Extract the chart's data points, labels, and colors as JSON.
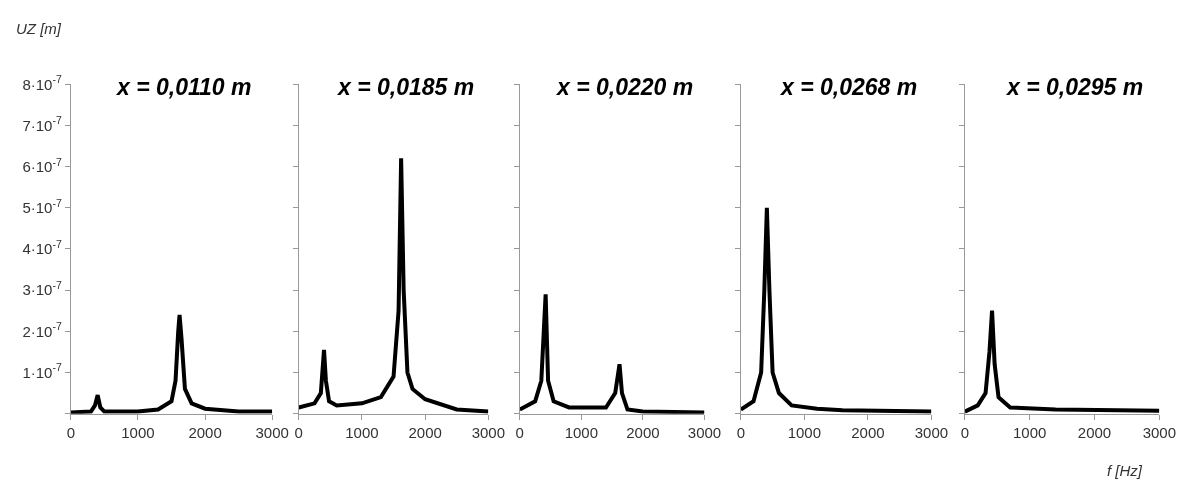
{
  "chart_data": [
    {
      "type": "line",
      "title": "x = 0,0110 m",
      "ylabel": "UZ [m]",
      "color": "#000000",
      "marker": "none",
      "line_style": "solid",
      "x": [
        0,
        300,
        360,
        400,
        440,
        500,
        1000,
        1300,
        1500,
        1560,
        1600,
        1620,
        1650,
        1700,
        1800,
        2000,
        2500,
        3000
      ],
      "values": [
        3e-09,
        5e-09,
        2e-08,
        4.5e-08,
        1.5e-08,
        5e-09,
        5e-09,
        1e-08,
        3e-08,
        8e-08,
        2e-07,
        2.4e-07,
        1.8e-07,
        6e-08,
        2.5e-08,
        1.2e-08,
        5e-09,
        5e-09
      ],
      "xlim": [
        0,
        3000
      ],
      "xticks": [
        0,
        1000,
        2000,
        3000
      ],
      "ylim": [
        0,
        8e-07
      ],
      "yticks": [
        {
          "value": 0,
          "label": null
        },
        {
          "value": 1e-07,
          "label": "1·10$^{-7}$"
        },
        {
          "value": 2e-07,
          "label": "2·10$^{-7}$"
        },
        {
          "value": 3e-07,
          "label": "3·10$^{-7}$"
        },
        {
          "value": 4e-07,
          "label": "4·10$^{-7}$"
        },
        {
          "value": 5e-07,
          "label": "5·10$^{-7}$"
        },
        {
          "value": 6e-07,
          "label": "6·10$^{-7}$"
        },
        {
          "value": 7e-07,
          "label": "7·10$^{-7}$"
        },
        {
          "value": 8e-07,
          "label": "8·10$^{-7}$"
        }
      ]
    },
    {
      "type": "line",
      "title": "x = 0,0185 m",
      "color": "#000000",
      "marker": "none",
      "line_style": "solid",
      "tick_labels": "x",
      "x": [
        0,
        250,
        350,
        400,
        430,
        480,
        600,
        1000,
        1300,
        1500,
        1580,
        1620,
        1660,
        1720,
        1800,
        2000,
        2500,
        3000
      ],
      "values": [
        1.5e-08,
        2.5e-08,
        5e-08,
        1.55e-07,
        8e-08,
        3e-08,
        2e-08,
        2.5e-08,
        4e-08,
        9e-08,
        2.5e-07,
        6.2e-07,
        3e-07,
        1e-07,
        6e-08,
        3.5e-08,
        1e-08,
        5e-09
      ],
      "xlim": [
        0,
        3000
      ],
      "xticks": [
        0,
        1000,
        2000,
        3000
      ],
      "ylim": [
        0,
        8e-07
      ],
      "yticks": [
        {
          "value": 0,
          "label": null
        },
        {
          "value": 1e-07,
          "label": null
        },
        {
          "value": 2e-07,
          "label": null
        },
        {
          "value": 3e-07,
          "label": null
        },
        {
          "value": 4e-07,
          "label": null
        },
        {
          "value": 5e-07,
          "label": null
        },
        {
          "value": 6e-07,
          "label": null
        },
        {
          "value": 7e-07,
          "label": null
        },
        {
          "value": 8e-07,
          "label": null
        }
      ]
    },
    {
      "type": "line",
      "title": "x = 0,0220 m",
      "color": "#000000",
      "marker": "none",
      "line_style": "solid",
      "tick_labels": "x",
      "x": [
        0,
        250,
        350,
        420,
        460,
        550,
        800,
        1400,
        1550,
        1620,
        1660,
        1750,
        2000,
        3000
      ],
      "values": [
        1e-08,
        3e-08,
        8e-08,
        2.9e-07,
        8e-08,
        3e-08,
        1.5e-08,
        1.5e-08,
        5e-08,
        1.2e-07,
        5e-08,
        1e-08,
        5e-09,
        3e-09
      ],
      "xlim": [
        0,
        3000
      ],
      "xticks": [
        0,
        1000,
        2000,
        3000
      ],
      "ylim": [
        0,
        8e-07
      ],
      "yticks": [
        {
          "value": 0,
          "label": null
        },
        {
          "value": 1e-07,
          "label": null
        },
        {
          "value": 2e-07,
          "label": null
        },
        {
          "value": 3e-07,
          "label": null
        },
        {
          "value": 4e-07,
          "label": null
        },
        {
          "value": 5e-07,
          "label": null
        },
        {
          "value": 6e-07,
          "label": null
        },
        {
          "value": 7e-07,
          "label": null
        },
        {
          "value": 8e-07,
          "label": null
        }
      ]
    },
    {
      "type": "line",
      "title": "x = 0,0268 m",
      "color": "#000000",
      "marker": "none",
      "line_style": "solid",
      "tick_labels": "x",
      "x": [
        0,
        200,
        320,
        370,
        410,
        450,
        500,
        600,
        800,
        1200,
        1600,
        3000
      ],
      "values": [
        1e-08,
        3e-08,
        1e-07,
        3e-07,
        5e-07,
        3e-07,
        1e-07,
        5e-08,
        2e-08,
        1.2e-08,
        8e-09,
        5e-09
      ],
      "xlim": [
        0,
        3000
      ],
      "xticks": [
        0,
        1000,
        2000,
        3000
      ],
      "ylim": [
        0,
        8e-07
      ],
      "yticks": [
        {
          "value": 0,
          "label": null
        },
        {
          "value": 1e-07,
          "label": null
        },
        {
          "value": 2e-07,
          "label": null
        },
        {
          "value": 3e-07,
          "label": null
        },
        {
          "value": 4e-07,
          "label": null
        },
        {
          "value": 5e-07,
          "label": null
        },
        {
          "value": 6e-07,
          "label": null
        },
        {
          "value": 7e-07,
          "label": null
        },
        {
          "value": 8e-07,
          "label": null
        }
      ]
    },
    {
      "type": "line",
      "title": "x = 0,0295 m",
      "xlabel": "f [Hz]",
      "color": "#000000",
      "marker": "none",
      "line_style": "solid",
      "tick_labels": "x",
      "x": [
        0,
        200,
        320,
        380,
        420,
        460,
        520,
        700,
        1400,
        3000
      ],
      "values": [
        5e-09,
        2e-08,
        5e-08,
        1.5e-07,
        2.5e-07,
        1.2e-07,
        4e-08,
        1.5e-08,
        1e-08,
        7e-09
      ],
      "xlim": [
        0,
        3000
      ],
      "xticks": [
        0,
        1000,
        2000,
        3000
      ],
      "ylim": [
        0,
        8e-07
      ],
      "yticks": [
        {
          "value": 0,
          "label": null
        },
        {
          "value": 1e-07,
          "label": null
        },
        {
          "value": 2e-07,
          "label": null
        },
        {
          "value": 3e-07,
          "label": null
        },
        {
          "value": 4e-07,
          "label": null
        },
        {
          "value": 5e-07,
          "label": null
        },
        {
          "value": 6e-07,
          "label": null
        },
        {
          "value": 7e-07,
          "label": null
        },
        {
          "value": 8e-07,
          "label": null
        }
      ]
    }
  ]
}
